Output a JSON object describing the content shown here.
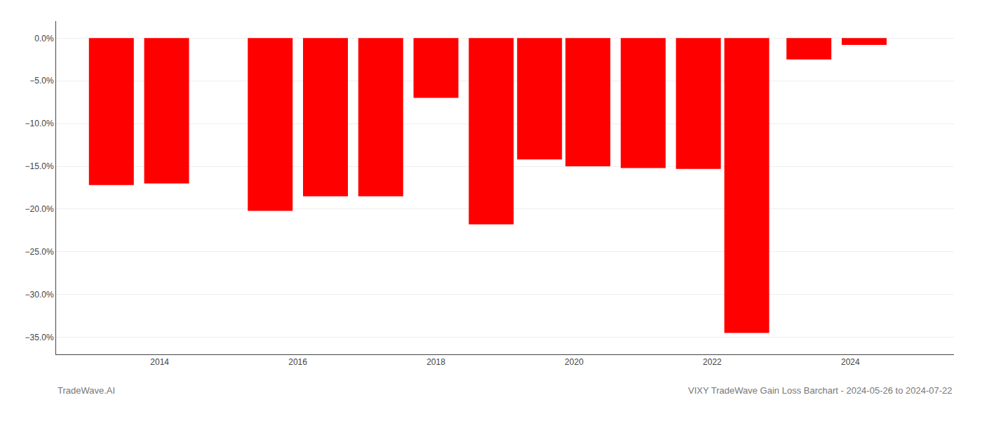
{
  "chart_data": {
    "type": "bar",
    "x": [
      2013.3,
      2014.1,
      2015.6,
      2016.4,
      2017.2,
      2018.0,
      2018.8,
      2019.5,
      2020.2,
      2021.0,
      2021.8,
      2022.5,
      2023.4,
      2024.2
    ],
    "values": [
      -17.2,
      -17.0,
      -20.2,
      -18.5,
      -18.5,
      -7.0,
      -21.8,
      -14.2,
      -15.0,
      -15.2,
      -15.3,
      -34.5,
      -2.5,
      -0.8
    ],
    "color": "#ff0000",
    "xlim": [
      2012.5,
      2025.5
    ],
    "xticks": [
      2014,
      2016,
      2018,
      2020,
      2022,
      2024
    ],
    "ylim": [
      -37,
      2
    ],
    "yticks": [
      {
        "value": 0,
        "label": "0.0%"
      },
      {
        "value": -5,
        "label": "−5.0%"
      },
      {
        "value": -10,
        "label": "−10.0%"
      },
      {
        "value": -15,
        "label": "−15.0%"
      },
      {
        "value": -20,
        "label": "−20.0%"
      },
      {
        "value": -25,
        "label": "−25.0%"
      },
      {
        "value": -30,
        "label": "−30.0%"
      },
      {
        "value": -35,
        "label": "−35.0%"
      }
    ],
    "grid": true,
    "annotations": [
      "TradeWave.AI",
      "VIXY TradeWave Gain Loss Barchart - 2024-05-26 to 2024-07-22"
    ]
  }
}
